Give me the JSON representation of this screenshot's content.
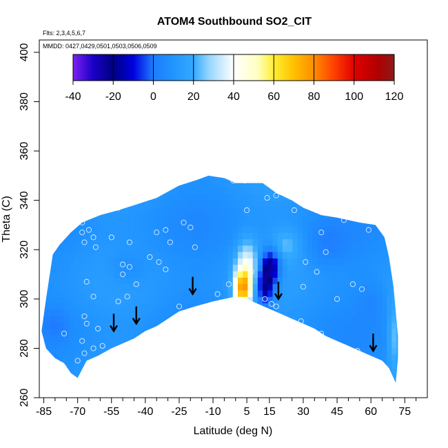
{
  "chart_data": {
    "type": "heatmap",
    "title": "ATOM4 Southbound SO2_CIT",
    "flights_note": "Flts: 2,3,4,5,6,7",
    "dates_note": "MMDD: 0427,0429,0501,0503,0506,0509",
    "xlabel": "Latitude (deg N)",
    "ylabel": "Theta (C)",
    "xlim": [
      -87,
      85
    ],
    "ylim": [
      260,
      405
    ],
    "x_ticks": [
      -85,
      -70,
      -55,
      -40,
      -25,
      -10,
      5,
      15,
      30,
      45,
      60,
      75
    ],
    "x_minor_ticks": [
      -80,
      -75,
      -65,
      -60,
      -50,
      -45,
      -35,
      -30,
      -20,
      -15,
      -5,
      0,
      10,
      20,
      25,
      35,
      40,
      50,
      55,
      65,
      70,
      80
    ],
    "y_ticks": [
      260,
      280,
      300,
      320,
      340,
      360,
      380,
      400
    ],
    "colorbar": {
      "min": -40,
      "max": 120,
      "ticks": [
        -40,
        -20,
        0,
        20,
        40,
        60,
        80,
        100,
        120
      ],
      "stops": [
        {
          "value": -40,
          "color": "#7f20f0"
        },
        {
          "value": -30,
          "color": "#1a00c8"
        },
        {
          "value": -20,
          "color": "#000080"
        },
        {
          "value": -10,
          "color": "#0000e0"
        },
        {
          "value": 0,
          "color": "#1f7cff"
        },
        {
          "value": 8,
          "color": "#1e90ff"
        },
        {
          "value": 20,
          "color": "#33aaff"
        },
        {
          "value": 28,
          "color": "#99d6ff"
        },
        {
          "value": 40,
          "color": "#ffffff"
        },
        {
          "value": 52,
          "color": "#ffffc0"
        },
        {
          "value": 60,
          "color": "#ffee33"
        },
        {
          "value": 70,
          "color": "#ffc000"
        },
        {
          "value": 80,
          "color": "#ff8c00"
        },
        {
          "value": 90,
          "color": "#ff4000"
        },
        {
          "value": 100,
          "color": "#e00000"
        },
        {
          "value": 112,
          "color": "#b00000"
        },
        {
          "value": 120,
          "color": "#8b1a1a"
        }
      ]
    },
    "envelope_top": [
      [
        -86,
        287
      ],
      [
        -84,
        300
      ],
      [
        -81,
        318
      ],
      [
        -78,
        322
      ],
      [
        -73,
        327
      ],
      [
        -68,
        331
      ],
      [
        -60,
        334
      ],
      [
        -52,
        336
      ],
      [
        -45,
        338
      ],
      [
        -35,
        341
      ],
      [
        -25,
        346
      ],
      [
        -18,
        348
      ],
      [
        -12,
        350
      ],
      [
        -5,
        349
      ],
      [
        0,
        347
      ],
      [
        5,
        347
      ],
      [
        12,
        347
      ],
      [
        18,
        343
      ],
      [
        25,
        340
      ],
      [
        30,
        337
      ],
      [
        38,
        334
      ],
      [
        45,
        333
      ],
      [
        55,
        331
      ],
      [
        62,
        330
      ],
      [
        66,
        325
      ],
      [
        68,
        317
      ],
      [
        70,
        305
      ],
      [
        71,
        295
      ],
      [
        72,
        285
      ],
      [
        72,
        276
      ],
      [
        71,
        266
      ]
    ],
    "envelope_bottom": [
      [
        -86,
        287
      ],
      [
        -84,
        280
      ],
      [
        -80,
        276
      ],
      [
        -76,
        274
      ],
      [
        -73,
        270
      ],
      [
        -70,
        268
      ],
      [
        -66,
        275
      ],
      [
        -61,
        277
      ],
      [
        -55,
        280
      ],
      [
        -50,
        282
      ],
      [
        -45,
        284
      ],
      [
        -40,
        287
      ],
      [
        -35,
        289
      ],
      [
        -30,
        292
      ],
      [
        -25,
        295
      ],
      [
        -18,
        297
      ],
      [
        -10,
        299
      ],
      [
        -5,
        300
      ],
      [
        0,
        301
      ],
      [
        5,
        300
      ],
      [
        10,
        298
      ],
      [
        15,
        296
      ],
      [
        20,
        294
      ],
      [
        25,
        292
      ],
      [
        30,
        290
      ],
      [
        35,
        288
      ],
      [
        40,
        285
      ],
      [
        45,
        283
      ],
      [
        50,
        281
      ],
      [
        55,
        279
      ],
      [
        60,
        277
      ],
      [
        65,
        275
      ],
      [
        68,
        272
      ],
      [
        71,
        266
      ]
    ],
    "background_value": 10,
    "anomalies": [
      {
        "lat": 3,
        "theta": 304,
        "value": 62,
        "sigma_lat": 2.6,
        "sigma_theta": 5
      },
      {
        "lat": 5,
        "theta": 312,
        "value": 40,
        "sigma_lat": 3.5,
        "sigma_theta": 8
      },
      {
        "lat": 13,
        "theta": 306,
        "value": -24,
        "sigma_lat": 2.8,
        "sigma_theta": 6
      },
      {
        "lat": 16,
        "theta": 314,
        "value": -18,
        "sigma_lat": 3,
        "sigma_theta": 5
      },
      {
        "lat": 22,
        "theta": 322,
        "value": 22,
        "sigma_lat": 5,
        "sigma_theta": 5
      },
      {
        "lat": -48,
        "theta": 312,
        "value": 4,
        "sigma_lat": 6,
        "sigma_theta": 5
      },
      {
        "lat": 40,
        "theta": 322,
        "value": 4,
        "sigma_lat": 6,
        "sigma_theta": 6
      },
      {
        "lat": 60,
        "theta": 300,
        "value": 6,
        "sigma_lat": 4,
        "sigma_theta": 6
      },
      {
        "lat": 70,
        "theta": 285,
        "value": 25,
        "sigma_lat": 1.8,
        "sigma_theta": 10
      },
      {
        "lat": -80,
        "theta": 290,
        "value": 4,
        "sigma_lat": 4,
        "sigma_theta": 4
      }
    ],
    "observations": [
      {
        "lat": -68,
        "theta": 331
      },
      {
        "lat": -65,
        "theta": 328
      },
      {
        "lat": -68,
        "theta": 327
      },
      {
        "lat": -67,
        "theta": 323
      },
      {
        "lat": -63,
        "theta": 325
      },
      {
        "lat": -62,
        "theta": 321
      },
      {
        "lat": -52,
        "theta": 337
      },
      {
        "lat": -55,
        "theta": 325
      },
      {
        "lat": -47,
        "theta": 323
      },
      {
        "lat": -47,
        "theta": 313
      },
      {
        "lat": -44,
        "theta": 306
      },
      {
        "lat": -50,
        "theta": 310
      },
      {
        "lat": -52,
        "theta": 299
      },
      {
        "lat": -48,
        "theta": 301
      },
      {
        "lat": -66,
        "theta": 307
      },
      {
        "lat": -63,
        "theta": 301
      },
      {
        "lat": -67,
        "theta": 293
      },
      {
        "lat": -66,
        "theta": 290
      },
      {
        "lat": -61,
        "theta": 288
      },
      {
        "lat": -68,
        "theta": 283
      },
      {
        "lat": -63,
        "theta": 280
      },
      {
        "lat": -59,
        "theta": 281
      },
      {
        "lat": -70,
        "theta": 275
      },
      {
        "lat": -67,
        "theta": 278
      },
      {
        "lat": -76,
        "theta": 286
      },
      {
        "lat": -83,
        "theta": 321
      },
      {
        "lat": -50,
        "theta": 314
      },
      {
        "lat": -38,
        "theta": 317
      },
      {
        "lat": -34,
        "theta": 315
      },
      {
        "lat": -31,
        "theta": 312
      },
      {
        "lat": -35,
        "theta": 327
      },
      {
        "lat": -31,
        "theta": 328
      },
      {
        "lat": -29,
        "theta": 323
      },
      {
        "lat": -23,
        "theta": 331
      },
      {
        "lat": -20,
        "theta": 329
      },
      {
        "lat": -18,
        "theta": 321
      },
      {
        "lat": -25,
        "theta": 297
      },
      {
        "lat": -8,
        "theta": 302
      },
      {
        "lat": -3,
        "theta": 306
      },
      {
        "lat": -1,
        "theta": 348
      },
      {
        "lat": 4,
        "theta": 348
      },
      {
        "lat": 5,
        "theta": 336
      },
      {
        "lat": 5,
        "theta": 315
      },
      {
        "lat": 7,
        "theta": 311
      },
      {
        "lat": 13,
        "theta": 300
      },
      {
        "lat": 16,
        "theta": 298
      },
      {
        "lat": 18,
        "theta": 297
      },
      {
        "lat": 14,
        "theta": 341
      },
      {
        "lat": 18,
        "theta": 342
      },
      {
        "lat": 26,
        "theta": 336
      },
      {
        "lat": 30,
        "theta": 305
      },
      {
        "lat": 29,
        "theta": 291
      },
      {
        "lat": 36,
        "theta": 311
      },
      {
        "lat": 38,
        "theta": 327
      },
      {
        "lat": 40,
        "theta": 319
      },
      {
        "lat": 45,
        "theta": 300
      },
      {
        "lat": 48,
        "theta": 332
      },
      {
        "lat": 52,
        "theta": 306
      },
      {
        "lat": 56,
        "theta": 304
      },
      {
        "lat": 59,
        "theta": 328
      },
      {
        "lat": 47,
        "theta": 279
      },
      {
        "lat": 54,
        "theta": 279
      },
      {
        "lat": 38,
        "theta": 286
      },
      {
        "lat": 31,
        "theta": 315
      }
    ],
    "arrows": [
      {
        "lat": -54,
        "theta": 287
      },
      {
        "lat": -44,
        "theta": 290
      },
      {
        "lat": -19,
        "theta": 302
      },
      {
        "lat": 19,
        "theta": 300
      },
      {
        "lat": 61,
        "theta": 279
      }
    ]
  }
}
